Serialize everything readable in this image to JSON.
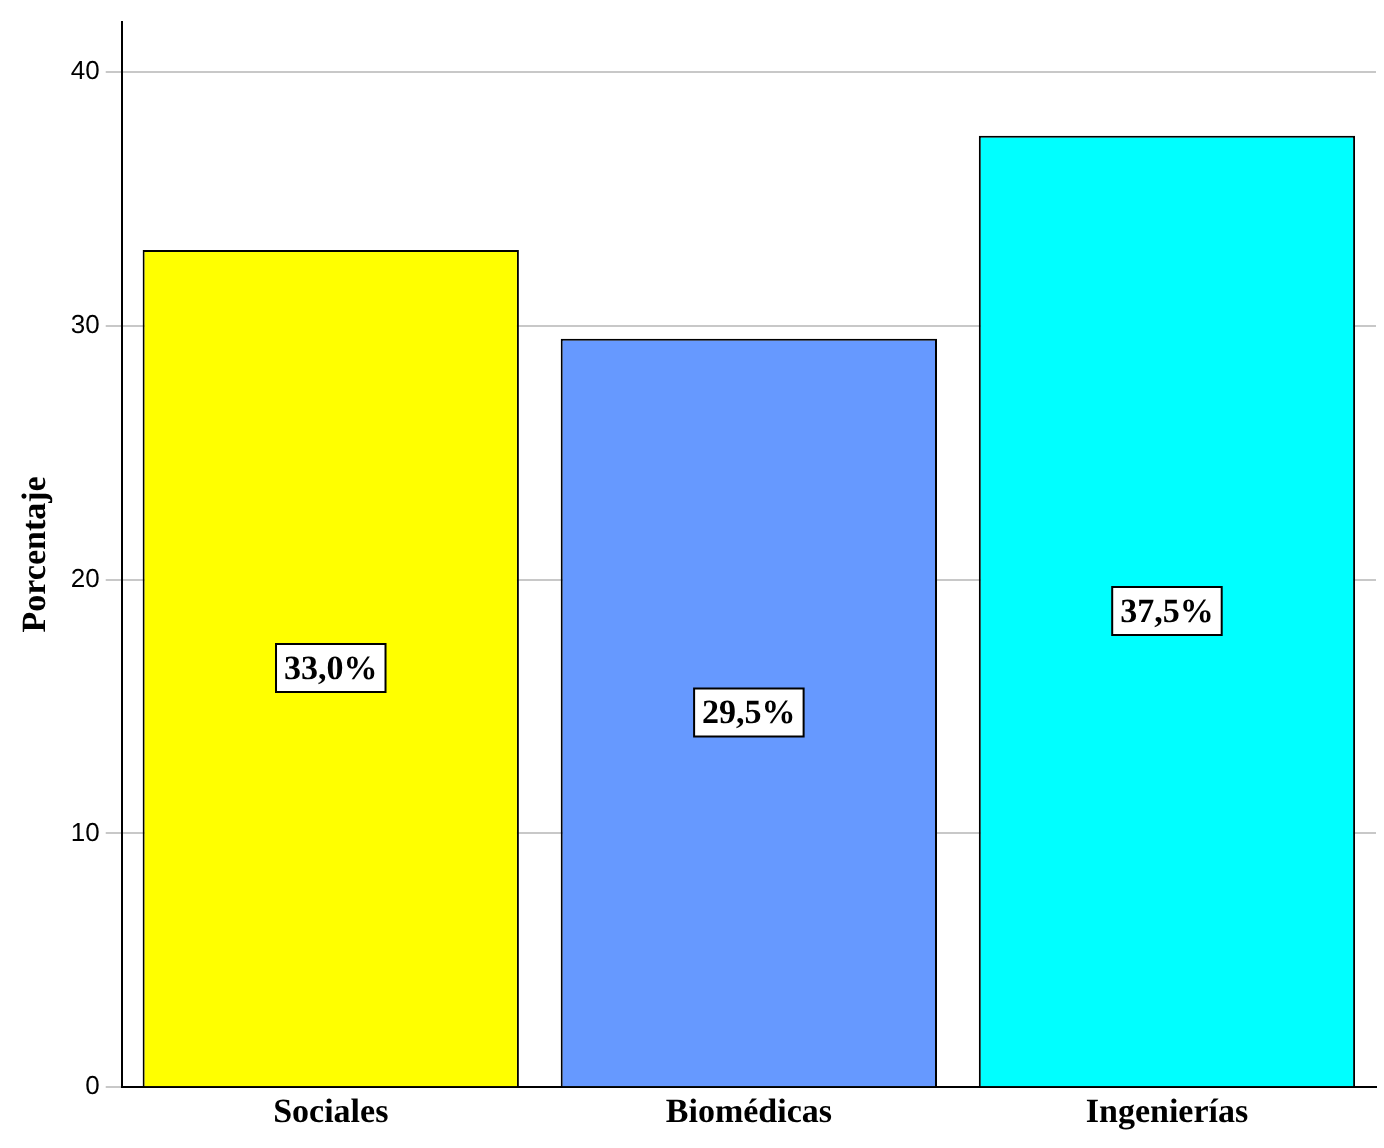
{
  "chart_data": {
    "type": "bar",
    "ylabel": "Porcentaje",
    "categories": [
      "Sociales",
      "Biomédicas",
      "Ingenierías"
    ],
    "values": [
      33.0,
      29.5,
      37.5
    ],
    "colors": [
      "#ffff00",
      "#6699ff",
      "#00ffff"
    ],
    "value_labels": [
      "33,0%",
      "29,5%",
      "37,5%"
    ],
    "ylim": [
      0,
      42
    ],
    "yticks": [
      0,
      10,
      20,
      30,
      40
    ],
    "grid": "y",
    "legend": false
  }
}
